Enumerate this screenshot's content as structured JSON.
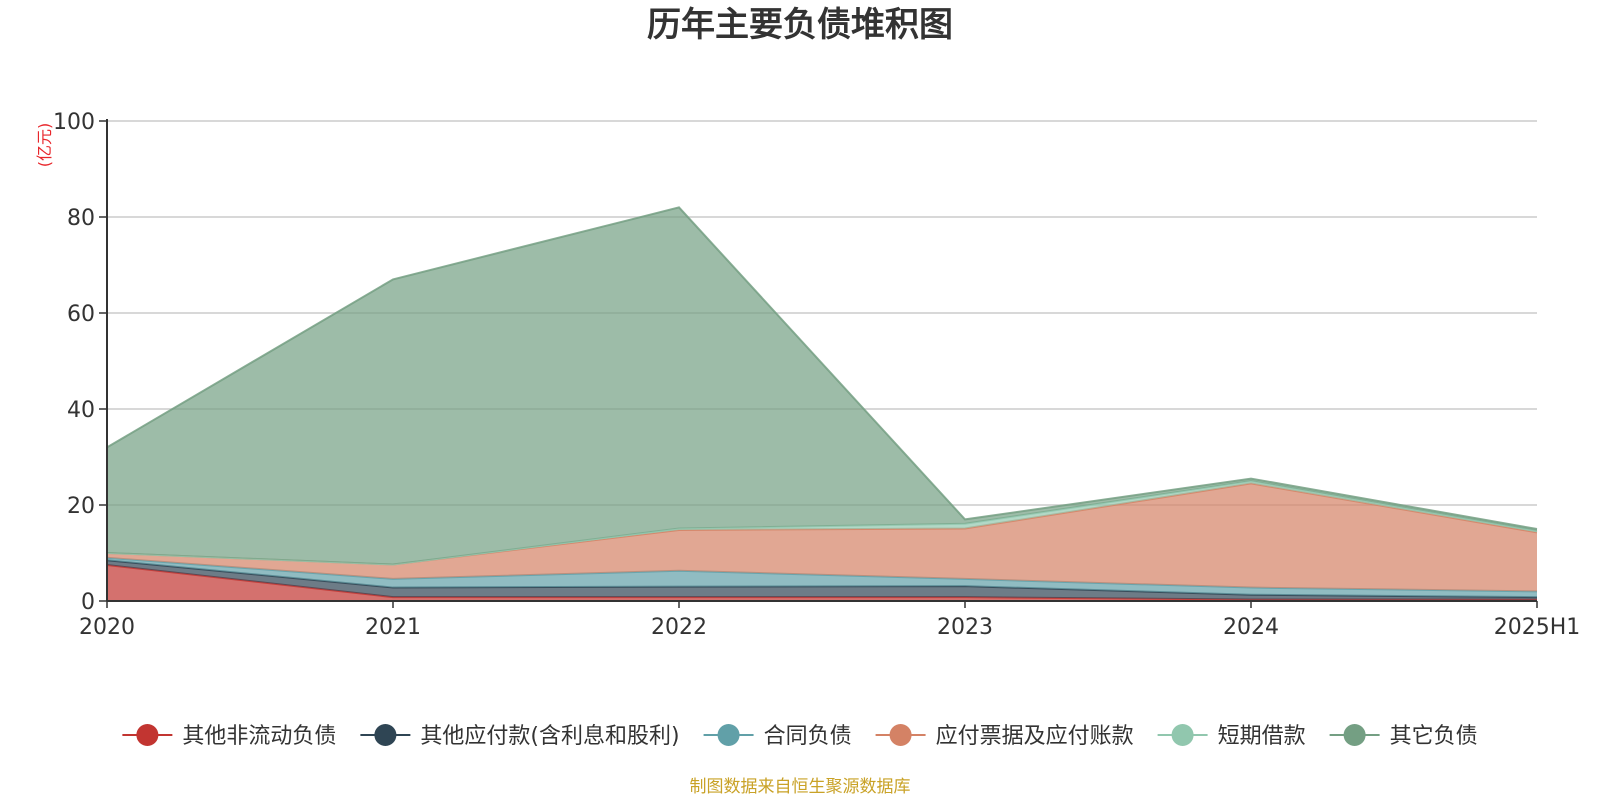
{
  "chart_data": {
    "type": "area",
    "stacked": true,
    "title": "历年主要负债堆积图",
    "unit_label": "(亿元)",
    "source_note": "制图数据来自恒生聚源数据库",
    "categories": [
      "2020",
      "2021",
      "2022",
      "2023",
      "2024",
      "2025H1"
    ],
    "ylim": [
      0,
      100
    ],
    "yticks": [
      0,
      20,
      40,
      60,
      80,
      100
    ],
    "grid": true,
    "legend_position": "bottom",
    "series": [
      {
        "name": "其他非流动负债",
        "color": "#c23531",
        "values": [
          7.5,
          0.8,
          0.8,
          0.8,
          0.3,
          0.3
        ]
      },
      {
        "name": "其他应付款(含利息和股利)",
        "color": "#2f4554",
        "values": [
          1.0,
          2.0,
          2.2,
          2.3,
          1.0,
          0.5
        ]
      },
      {
        "name": "合同负债",
        "color": "#61a0a8",
        "values": [
          0.5,
          1.8,
          3.3,
          1.5,
          1.5,
          1.2
        ]
      },
      {
        "name": "应付票据及应付账款",
        "color": "#d48265",
        "values": [
          1.0,
          3.0,
          8.5,
          10.5,
          21.7,
          12.3
        ]
      },
      {
        "name": "短期借款",
        "color": "#91c7ae",
        "values": [
          0.0,
          0.0,
          0.3,
          1.0,
          0.5,
          0.3
        ]
      },
      {
        "name": "其它负债",
        "color": "#749f83",
        "values": [
          22.0,
          59.4,
          66.9,
          0.9,
          0.5,
          0.4
        ]
      }
    ]
  }
}
